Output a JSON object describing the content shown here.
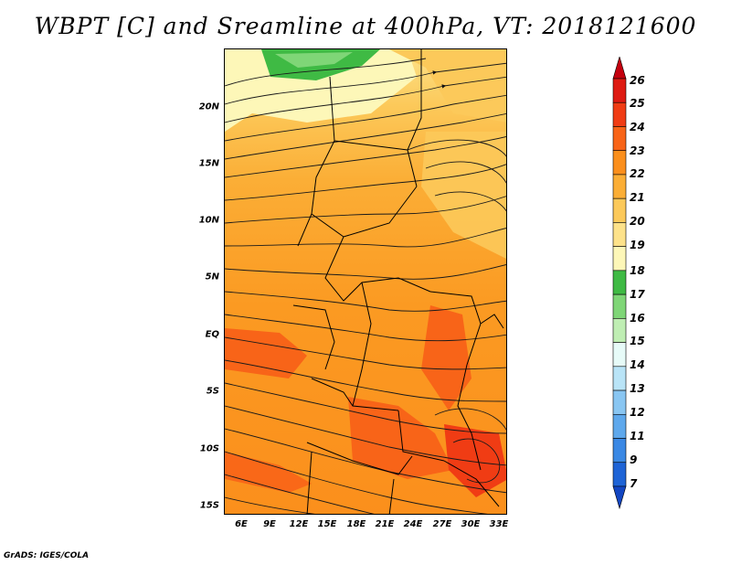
{
  "title": "WBPT [C] and Sreamline at 400hPa, VT: 2018121600",
  "lat_labels": [
    "20N",
    "15N",
    "10N",
    "5N",
    "EQ",
    "5S",
    "10S",
    "15S"
  ],
  "lon_labels": [
    "6E",
    "9E",
    "12E",
    "15E",
    "18E",
    "21E",
    "24E",
    "27E",
    "30E",
    "33E"
  ],
  "colorbar": {
    "levels": [
      "26",
      "25",
      "24",
      "23",
      "22",
      "21",
      "20",
      "19",
      "18",
      "17",
      "16",
      "15",
      "14",
      "13",
      "12",
      "11",
      "9",
      "7"
    ],
    "colors": [
      "#c4000e",
      "#de1a12",
      "#f03c14",
      "#f86418",
      "#fb8f1c",
      "#fbae36",
      "#fcc95a",
      "#fde28a",
      "#fdf7b8",
      "#3fba44",
      "#7fd677",
      "#bfeeb3",
      "#e7fbf8",
      "#b9e4f7",
      "#89c6f2",
      "#5ea8ec",
      "#3a88e4",
      "#1f64d6",
      "#1346c2"
    ]
  },
  "credit": "GrADS: IGES/COLA"
}
